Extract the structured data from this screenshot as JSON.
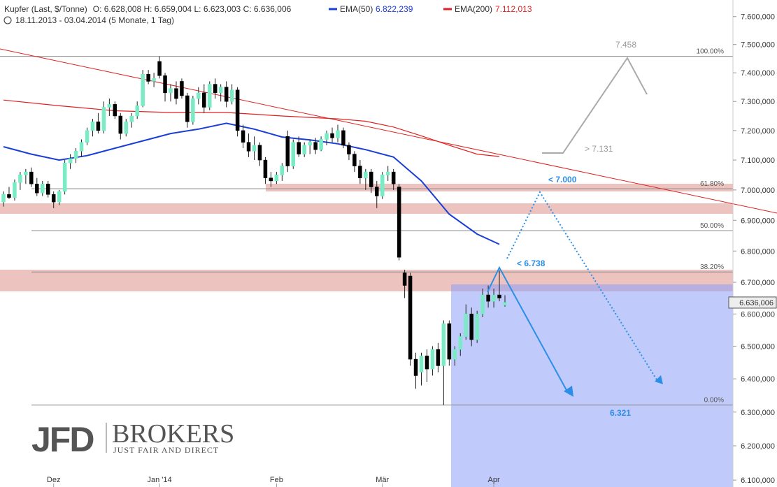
{
  "header": {
    "instrument": "Kupfer (Last, $/Tonne)",
    "ohlc": "O: 6.628,008  H: 6.659,004  L: 6.623,003  C: 6.636,006",
    "range": "18.11.2013 - 03.04.2014 (5 Monate, 1 Tag)"
  },
  "logo": {
    "main": "JFD",
    "brand": "BROKERS",
    "tagline": "JUST FAIR AND DIRECT"
  },
  "chart_data": {
    "type": "candlestick",
    "log_scale": true,
    "up_color": "#80e8c8",
    "down_color": "#000000",
    "categories": [
      null,
      null,
      null,
      null,
      null,
      null,
      null,
      null,
      null,
      "Dez",
      null,
      null,
      null,
      null,
      null,
      null,
      null,
      null,
      null,
      null,
      null,
      null,
      null,
      null,
      null,
      null,
      null,
      null,
      "Jan '14",
      null,
      null,
      null,
      null,
      null,
      null,
      null,
      null,
      null,
      null,
      null,
      null,
      null,
      null,
      null,
      null,
      null,
      null,
      null,
      null,
      "Feb",
      null,
      null,
      null,
      null,
      null,
      null,
      null,
      null,
      null,
      null,
      null,
      null,
      null,
      null,
      null,
      null,
      null,
      null,
      "Mär",
      null,
      null,
      null,
      null,
      null,
      null,
      null,
      null,
      null,
      null,
      null,
      null,
      null,
      null,
      null,
      null,
      null,
      null,
      null,
      "Apr",
      null,
      null
    ],
    "open": [
      6960,
      6985,
      6975,
      7025,
      7050,
      7060,
      7020,
      6990,
      7020,
      6985,
      6960,
      6995,
      7090,
      7105,
      7130,
      7160,
      7200,
      7230,
      7200,
      7280,
      7290,
      7250,
      7190,
      7230,
      7250,
      7285,
      7395,
      7370,
      7440,
      7390,
      7330,
      7345,
      7370,
      7320,
      7230,
      7310,
      7330,
      7280,
      7360,
      7330,
      7350,
      7300,
      7340,
      7200,
      7160,
      7130,
      7150,
      7100,
      7040,
      7030,
      7050,
      7180,
      7080,
      7160,
      7120,
      7150,
      7160,
      7135,
      7170,
      7190,
      7175,
      7200,
      7150,
      7120,
      7080,
      7040,
      7060,
      7010,
      6980,
      7050,
      7060,
      7010,
      6730,
      6720,
      6460,
      6420,
      6470,
      6430,
      6490,
      6440,
      6570,
      6460,
      6490,
      6530,
      6600,
      6520,
      6600,
      6660,
      6640,
      6660,
      6628.008
    ],
    "high": [
      6995,
      7010,
      7035,
      7060,
      7070,
      7075,
      7040,
      7030,
      7030,
      6995,
      7000,
      7100,
      7120,
      7140,
      7170,
      7210,
      7240,
      7260,
      7300,
      7310,
      7300,
      7260,
      7240,
      7260,
      7300,
      7410,
      7410,
      7400,
      7458,
      7400,
      7360,
      7370,
      7380,
      7330,
      7320,
      7350,
      7360,
      7370,
      7380,
      7360,
      7370,
      7360,
      7350,
      7220,
      7190,
      7180,
      7160,
      7110,
      7060,
      7060,
      7090,
      7200,
      7170,
      7180,
      7160,
      7170,
      7175,
      7180,
      7200,
      7210,
      7220,
      7210,
      7160,
      7130,
      7100,
      7070,
      7070,
      7030,
      7060,
      7080,
      7070,
      7020,
      6740,
      6730,
      6480,
      6480,
      6490,
      6500,
      6510,
      6580,
      6580,
      6500,
      6540,
      6630,
      6620,
      6610,
      6680,
      6690,
      6680,
      6738,
      6659.004
    ],
    "low": [
      6945,
      6970,
      6965,
      7000,
      7020,
      7010,
      6980,
      6980,
      6975,
      6940,
      6950,
      6985,
      7070,
      7090,
      7110,
      7150,
      7180,
      7190,
      7190,
      7250,
      7240,
      7170,
      7180,
      7210,
      7240,
      7280,
      7360,
      7350,
      7380,
      7300,
      7300,
      7290,
      7310,
      7210,
      7220,
      7290,
      7260,
      7270,
      7310,
      7300,
      7280,
      7290,
      7180,
      7140,
      7110,
      7100,
      7080,
      7020,
      7010,
      7020,
      7030,
      7060,
      7070,
      7110,
      7110,
      7120,
      7120,
      7130,
      7150,
      7160,
      7160,
      7140,
      7100,
      7060,
      7020,
      7000,
      6990,
      6940,
      6970,
      7030,
      7000,
      6770,
      6650,
      6440,
      6370,
      6380,
      6390,
      6410,
      6420,
      6321,
      6440,
      6440,
      6470,
      6520,
      6500,
      6510,
      6590,
      6620,
      6620,
      6640,
      6623.003
    ],
    "close": [
      6985,
      6975,
      7025,
      7050,
      7060,
      7020,
      6990,
      7020,
      6985,
      6960,
      6995,
      7090,
      7105,
      7130,
      7160,
      7200,
      7230,
      7200,
      7280,
      7290,
      7250,
      7190,
      7230,
      7250,
      7285,
      7395,
      7370,
      7380,
      7390,
      7330,
      7345,
      7310,
      7320,
      7230,
      7310,
      7330,
      7280,
      7360,
      7330,
      7350,
      7300,
      7340,
      7200,
      7160,
      7130,
      7150,
      7100,
      7040,
      7030,
      7050,
      7080,
      7080,
      7160,
      7120,
      7150,
      7160,
      7135,
      7170,
      7190,
      7175,
      7200,
      7150,
      7120,
      7080,
      7040,
      7060,
      7010,
      6980,
      7050,
      7060,
      7020,
      6780,
      6690,
      6460,
      6410,
      6470,
      6430,
      6490,
      6440,
      6570,
      6460,
      6490,
      6530,
      6600,
      6520,
      6600,
      6660,
      6640,
      6660,
      6650,
      6636.006
    ],
    "series": [
      {
        "name": "EMA(50)",
        "color": "#1a3fd6",
        "last_label": "6.822,239",
        "x": [
          0,
          5,
          10,
          15,
          20,
          25,
          30,
          35,
          40,
          45,
          50,
          55,
          60,
          65,
          70,
          75,
          80,
          85,
          89
        ],
        "values": [
          7145,
          7120,
          7100,
          7115,
          7140,
          7165,
          7190,
          7205,
          7225,
          7205,
          7178,
          7168,
          7155,
          7135,
          7110,
          7030,
          6920,
          6855,
          6822
        ]
      },
      {
        "name": "EMA(200)",
        "color": "#e02020",
        "last_label": "7.112,013",
        "x": [
          0,
          10,
          20,
          30,
          40,
          50,
          60,
          65,
          70,
          75,
          80,
          85,
          89
        ],
        "values": [
          7305,
          7285,
          7268,
          7262,
          7262,
          7250,
          7240,
          7232,
          7212,
          7182,
          7150,
          7120,
          7112
        ]
      }
    ],
    "last_price_label": "6.636,006",
    "fib_levels": [
      {
        "label": "100.00%",
        "value": 7458
      },
      {
        "label": "61.80%",
        "value": 7004
      },
      {
        "label": "50.00%",
        "value": 6866
      },
      {
        "label": "38.20%",
        "value": 6733
      },
      {
        "label": "0.00%",
        "value": 6321
      }
    ],
    "annotations": [
      "7.458",
      "> 7.131",
      "< 7.000",
      "< 6.738",
      "6.321"
    ],
    "ylim": [
      6080,
      7660
    ],
    "yticks": [
      {
        "value": 7600,
        "label": "7.600,000"
      },
      {
        "value": 7500,
        "label": "7.500,000"
      },
      {
        "value": 7400,
        "label": "7.400,000"
      },
      {
        "value": 7300,
        "label": "7.300,000"
      },
      {
        "value": 7200,
        "label": "7.200,000"
      },
      {
        "value": 7100,
        "label": "7.100,000"
      },
      {
        "value": 7000,
        "label": "7.000,000"
      },
      {
        "value": 6900,
        "label": "6.900,000"
      },
      {
        "value": 6800,
        "label": "6.800,000"
      },
      {
        "value": 6700,
        "label": "6.700,000"
      },
      {
        "value": 6600,
        "label": "6.600,000"
      },
      {
        "value": 6500,
        "label": "6.500,000"
      },
      {
        "value": 6400,
        "label": "6.400,000"
      },
      {
        "value": 6300,
        "label": "6.300,000"
      },
      {
        "value": 6200,
        "label": "6.200,000"
      },
      {
        "value": 6100,
        "label": "6.100,000"
      }
    ]
  }
}
